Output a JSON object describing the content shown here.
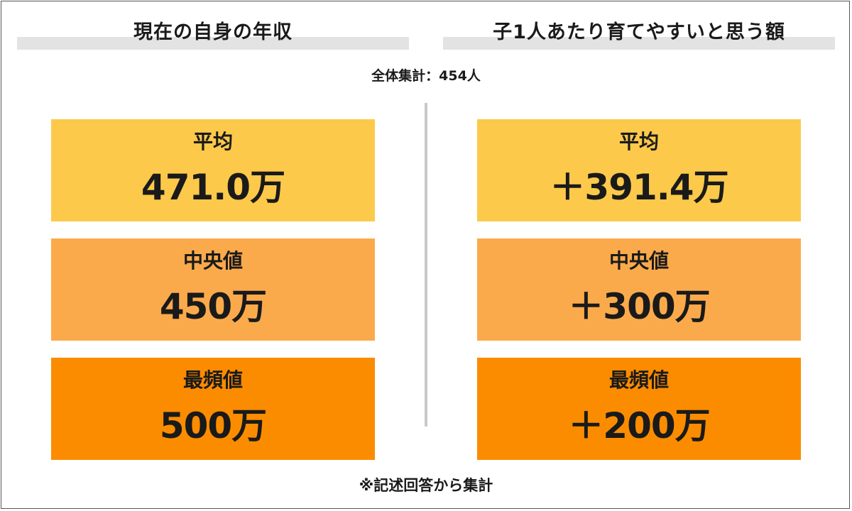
{
  "chart_data": {
    "type": "table",
    "columns": [
      {
        "title": "現在の自身の年収",
        "stats": [
          {
            "label": "平均",
            "value_text": "471.0万",
            "value": 471.0
          },
          {
            "label": "中央値",
            "value_text": "450万",
            "value": 450
          },
          {
            "label": "最頻値",
            "value_text": "500万",
            "value": 500
          }
        ]
      },
      {
        "title": "子1人あたり育てやすいと思う額",
        "stats": [
          {
            "label": "平均",
            "value_text": "＋391.4万",
            "value": 391.4
          },
          {
            "label": "中央値",
            "value_text": "＋300万",
            "value": 300
          },
          {
            "label": "最頻値",
            "value_text": "＋200万",
            "value": 200
          }
        ]
      }
    ],
    "total": "全体集計：454人",
    "note": "※記述回答から集計",
    "colors": {
      "平均": "#fcc94a",
      "中央値": "#fbaa4b",
      "最頻値": "#fb8c00",
      "header_bar": "#e3e3e3",
      "divider": "#c9c9c9"
    }
  }
}
